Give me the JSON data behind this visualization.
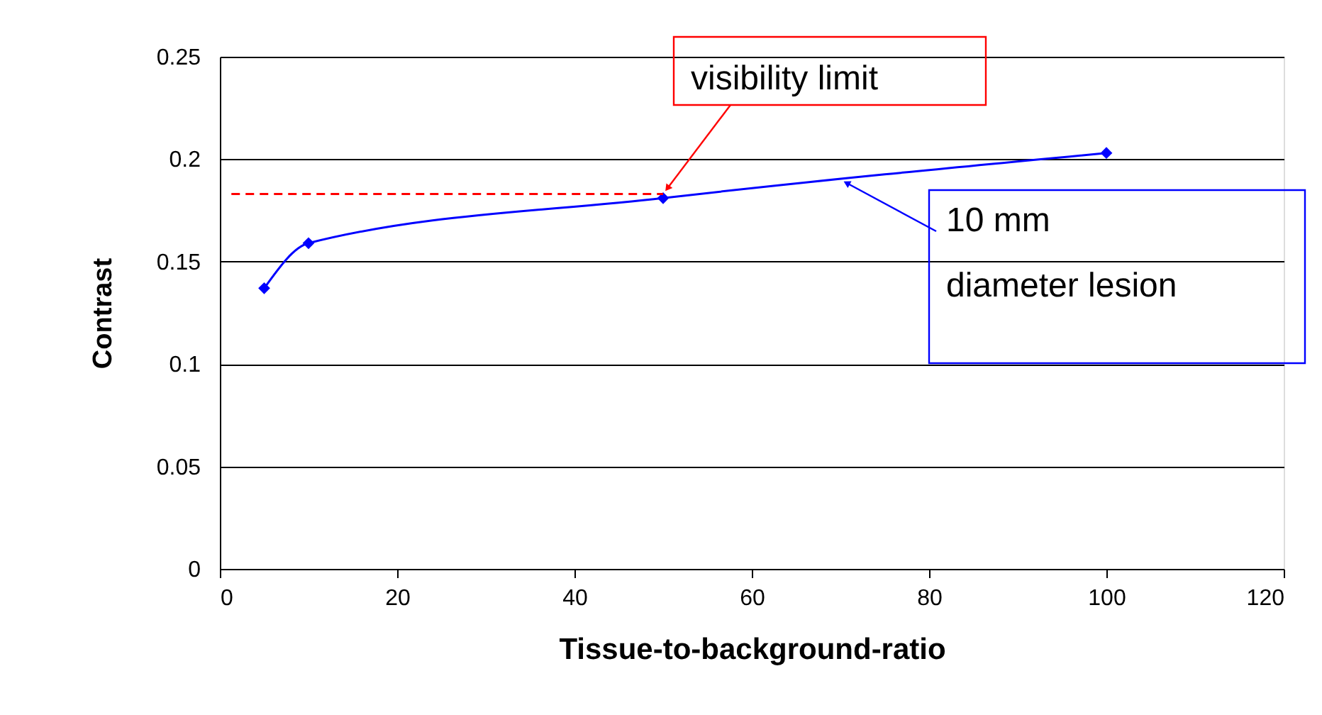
{
  "chart_data": {
    "type": "line",
    "xlabel": "Tissue-to-background-ratio",
    "ylabel": "Contrast",
    "series": [
      {
        "color": "#0000ff",
        "x": [
          5,
          10,
          50,
          100
        ],
        "values": [
          0.137,
          0.159,
          0.181,
          0.203
        ],
        "marker": "diamond"
      },
      {
        "type": "line",
        "color": "#ff0000",
        "line_style": "dashed",
        "x": [
          1.3,
          50
        ],
        "values": [
          0.183,
          0.183
        ]
      }
    ],
    "annotations": [
      {
        "text": "visibility limit",
        "x": 50,
        "y": 0.183
      },
      {
        "text": "10 mm diameter lesion",
        "x": 70,
        "y": 0.19
      }
    ],
    "xlim": [
      0,
      120
    ],
    "xticks": [
      0,
      20,
      40,
      60,
      80,
      100,
      120
    ],
    "ylim": [
      0,
      0.25
    ],
    "yticks": [
      0,
      0.05,
      0.1,
      0.15,
      0.2,
      0.25
    ],
    "grid": "y",
    "line_style": "solid"
  }
}
